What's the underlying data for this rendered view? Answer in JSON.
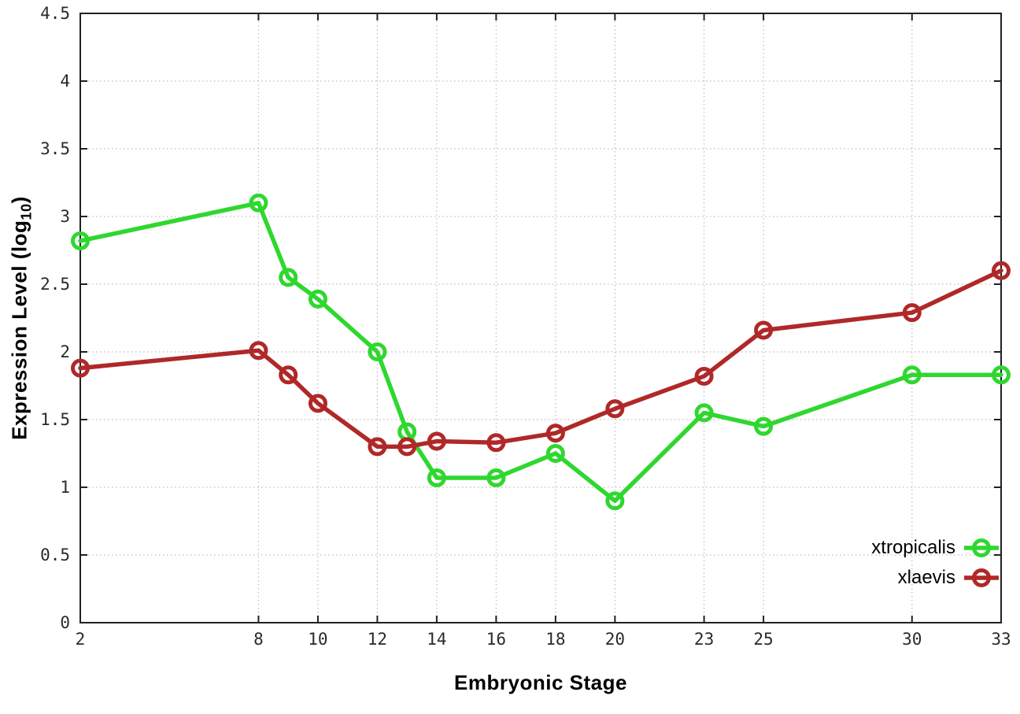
{
  "chart_data": {
    "type": "line",
    "title": "",
    "xlabel": "Embryonic Stage",
    "ylabel": "Expression Level (log10)",
    "ylabel_prefix": "Expression Level (log",
    "ylabel_sub": "10",
    "ylabel_suffix": ")",
    "xlim": [
      2,
      33
    ],
    "ylim": [
      0,
      4.5
    ],
    "grid": true,
    "legend_position": "bottom-right",
    "x_ticks": [
      2,
      8,
      10,
      12,
      14,
      16,
      18,
      20,
      23,
      25,
      30,
      33
    ],
    "x_tick_labels": [
      "2",
      "8",
      "10",
      "12",
      "14",
      "16",
      "18",
      "20",
      "23",
      "25",
      "30",
      "33"
    ],
    "y_ticks": [
      0,
      0.5,
      1,
      1.5,
      2,
      2.5,
      3,
      3.5,
      4,
      4.5
    ],
    "y_tick_labels": [
      "0",
      "0.5",
      "1",
      "1.5",
      "2",
      "2.5",
      "3",
      "3.5",
      "4",
      "4.5"
    ],
    "x": [
      2,
      8,
      9,
      10,
      12,
      13,
      14,
      16,
      18,
      20,
      23,
      25,
      30,
      33
    ],
    "series": [
      {
        "name": "xtropicalis",
        "color": "#2fd72f",
        "values": [
          2.82,
          3.1,
          2.55,
          2.39,
          2.0,
          1.41,
          1.07,
          1.07,
          1.25,
          0.9,
          1.55,
          1.45,
          1.83,
          1.83
        ]
      },
      {
        "name": "xlaevis",
        "color": "#b02828",
        "values": [
          1.88,
          2.01,
          1.83,
          1.62,
          1.3,
          1.3,
          1.34,
          1.33,
          1.4,
          1.58,
          1.82,
          2.16,
          2.29,
          2.6
        ]
      }
    ],
    "colors": {
      "background": "#ffffff",
      "border": "#212121",
      "grid": "#bdbdbd",
      "tick_text": "#2a2a2a"
    }
  }
}
